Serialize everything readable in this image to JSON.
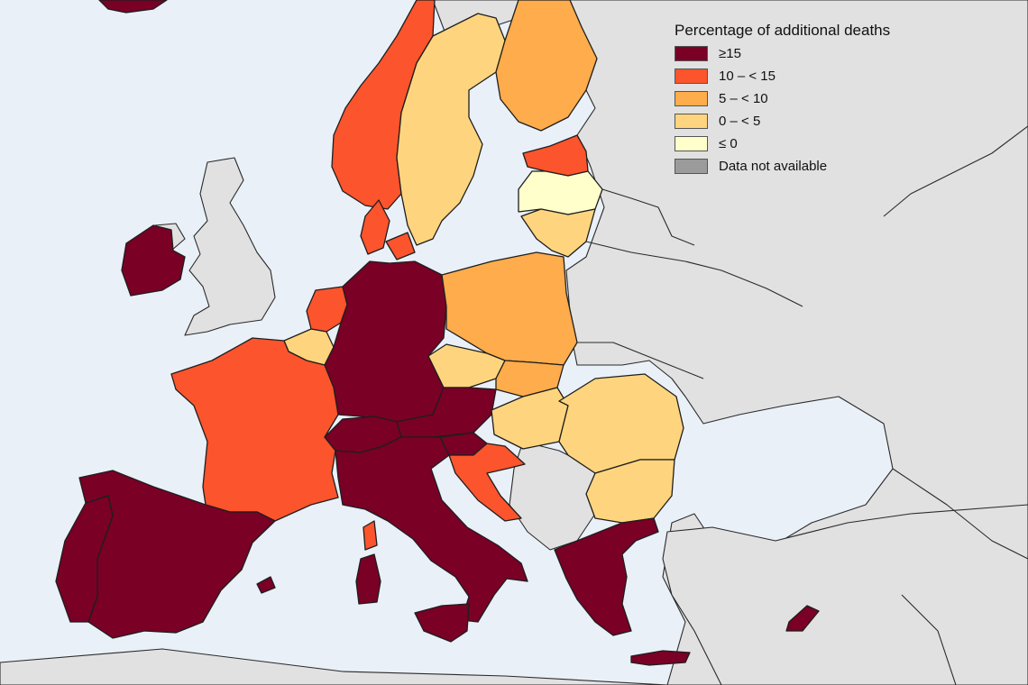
{
  "legend": {
    "title": "Percentage of additional deaths",
    "items": [
      {
        "label": "≥15",
        "color": "#7a0026"
      },
      {
        "label": "10 – < 15",
        "color": "#fc542c"
      },
      {
        "label": "5 – < 10",
        "color": "#feac4c"
      },
      {
        "label": "0 – < 5",
        "color": "#fed57e"
      },
      {
        "label": "≤ 0",
        "color": "#ffffcc"
      },
      {
        "label": "Data not available",
        "color": "#9b9b9b"
      }
    ]
  },
  "colors": {
    "sea": "#e9f0f8",
    "non_member": "#e1e1e1",
    "border": "#1e1e1e"
  }
}
